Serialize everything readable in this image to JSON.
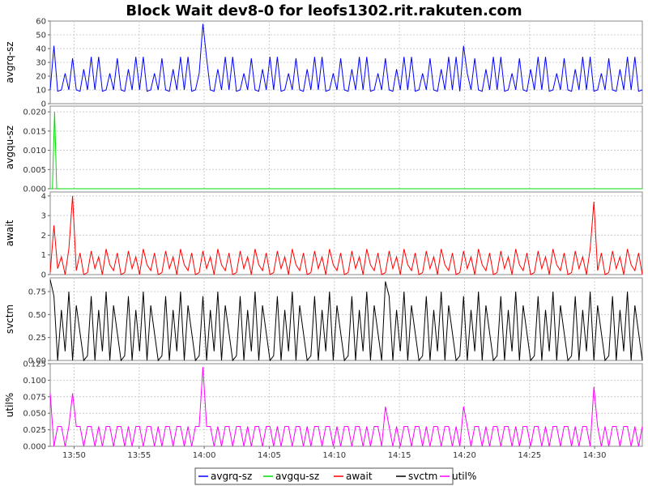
{
  "chart_data": {
    "type": "line",
    "title": "Block Wait dev8-0 for leofs1302.rit.rakuten.com",
    "x_range": [
      "13:48:10",
      "14:33:40"
    ],
    "x_ticks": [
      "13:50",
      "13:55",
      "14:00",
      "14:05",
      "14:10",
      "14:15",
      "14:20",
      "14:25",
      "14:30"
    ],
    "grid": true,
    "legend_placement": "bottom",
    "legend": [
      "avgrq-sz",
      "avgqu-sz",
      "await",
      "svctm",
      "util%"
    ],
    "panels": [
      {
        "ylabel": "avgrq-sz",
        "color": "#0000ff",
        "ylim": [
          0,
          60
        ],
        "yticks": [
          "0",
          "10",
          "20",
          "30",
          "40",
          "50",
          "60"
        ],
        "series": {
          "name": "avgrq-sz",
          "pattern_values": [
            10,
            34,
            9,
            10,
            22,
            10,
            33,
            10,
            9,
            25,
            10,
            34
          ],
          "samples": 160,
          "peaks": [
            {
              "x": "14:00",
              "y": 58
            },
            {
              "x": "14:20",
              "y": 42
            },
            {
              "x": "13:48:30",
              "y": 42
            }
          ]
        }
      },
      {
        "ylabel": "avgqu-sz",
        "color": "#00dd00",
        "ylim": [
          0,
          0.0215
        ],
        "yticks": [
          "0.000",
          "0.005",
          "0.010",
          "0.015",
          "0.020"
        ],
        "series": {
          "name": "avgqu-sz",
          "baseline": 0,
          "peaks": [
            {
              "x": "13:48:30",
              "y": 0.02
            }
          ]
        }
      },
      {
        "ylabel": "await",
        "color": "#ff0000",
        "ylim": [
          0,
          4.2
        ],
        "yticks": [
          "0",
          "1",
          "2",
          "3",
          "4"
        ],
        "series": {
          "name": "await",
          "pattern_values": [
            0.1,
            1.2,
            0.3,
            0.9,
            0,
            1.3,
            0.5,
            0.2,
            1.1,
            0
          ],
          "samples": 160,
          "peaks": [
            {
              "x": "13:48:30",
              "y": 2.5
            },
            {
              "x": "13:50",
              "y": 4.0
            },
            {
              "x": "14:30",
              "y": 3.7
            }
          ]
        }
      },
      {
        "ylabel": "svctm",
        "color": "#000000",
        "ylim": [
          0,
          0.9
        ],
        "yticks": [
          "0.00",
          "0.25",
          "0.50",
          "0.75"
        ],
        "series": {
          "name": "svctm",
          "pattern_values": [
            0.05,
            0.7,
            0.0,
            0.55,
            0.1,
            0.75,
            0.0,
            0.6,
            0.3,
            0.0
          ],
          "samples": 160,
          "peaks": [
            {
              "x": "13:48:10",
              "y": 0.88
            },
            {
              "x": "14:14",
              "y": 0.86
            }
          ]
        }
      },
      {
        "ylabel": "util%",
        "color": "#ff00ff",
        "ylim": [
          0,
          0.125
        ],
        "yticks": [
          "0.000",
          "0.025",
          "0.050",
          "0.075",
          "0.100",
          "0.125"
        ],
        "series": {
          "name": "util%",
          "pattern_values": [
            0.03,
            0.0,
            0.03,
            0.03,
            0.0,
            0.03,
            0.0,
            0.03
          ],
          "samples": 160,
          "peaks": [
            {
              "x": "13:48:10",
              "y": 0.08
            },
            {
              "x": "13:50",
              "y": 0.08
            },
            {
              "x": "14:00",
              "y": 0.12
            },
            {
              "x": "14:14",
              "y": 0.06
            },
            {
              "x": "14:20",
              "y": 0.06
            },
            {
              "x": "14:30",
              "y": 0.09
            }
          ]
        }
      }
    ]
  }
}
